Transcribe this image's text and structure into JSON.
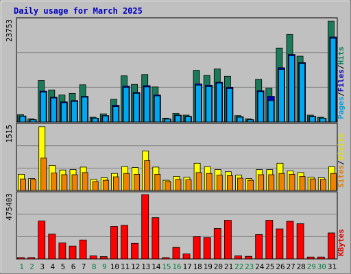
{
  "chart_data": {
    "type": "bar",
    "title": "Daily usage for March 2025",
    "categories": [
      "1",
      "2",
      "3",
      "4",
      "5",
      "6",
      "7",
      "8",
      "9",
      "10",
      "11",
      "12",
      "13",
      "14",
      "15",
      "16",
      "17",
      "18",
      "19",
      "20",
      "21",
      "22",
      "23",
      "24",
      "25",
      "26",
      "27",
      "28",
      "29",
      "30",
      "31"
    ],
    "weekend_days": [
      "1",
      "2",
      "8",
      "9",
      "15",
      "16",
      "22",
      "23",
      "29",
      "30"
    ],
    "panels": [
      {
        "id": "top",
        "max_label": "23753",
        "ymax": 23753,
        "legend": [
          {
            "text": "Pages",
            "color": "#00a0e0"
          },
          {
            "text": "Files",
            "color": "#0000c0"
          },
          {
            "text": "Hits",
            "color": "#008060"
          }
        ],
        "series": [
          {
            "name": "Hits",
            "color": "#1a7a5a",
            "values": [
              1700,
              700,
              9700,
              7500,
              6300,
              6700,
              8700,
              1100,
              1900,
              5300,
              10800,
              8800,
              11100,
              8200,
              900,
              2000,
              1600,
              12100,
              10900,
              12400,
              10700,
              1500,
              700,
              10000,
              7900,
              17300,
              20500,
              15400,
              1600,
              1100,
              23600
            ]
          },
          {
            "name": "Files",
            "color": "#0000c0",
            "values": [
              1400,
              550,
              7200,
              5800,
              4700,
              5000,
              6000,
              900,
              1500,
              3900,
              8400,
              6900,
              8500,
              6300,
              700,
              1600,
              1300,
              8900,
              8600,
              9300,
              8100,
              1200,
              550,
              7300,
              6000,
              12700,
              15800,
              13900,
              1300,
              900,
              19900
            ]
          },
          {
            "name": "Pages",
            "color": "#00a8f0",
            "values": [
              1300,
              500,
              7000,
              5600,
              4500,
              4800,
              5800,
              850,
              1400,
              3600,
              8100,
              6700,
              8200,
              6100,
              650,
              1500,
              1200,
              8600,
              8300,
              9100,
              7800,
              1100,
              500,
              7100,
              5000,
              12300,
              15500,
              13700,
              1200,
              850,
              19600
            ]
          }
        ]
      },
      {
        "id": "middle",
        "max_label": "1515",
        "ymax": 1515,
        "legend": [
          {
            "text": "Sites",
            "color": "#e08000"
          },
          {
            "text": "Visits",
            "color": "#e0e000"
          }
        ],
        "series": [
          {
            "name": "Visits",
            "color": "#ffff00",
            "values": [
              380,
              280,
              1500,
              590,
              480,
              490,
              550,
              260,
              300,
              400,
              560,
              540,
              930,
              550,
              240,
              330,
              310,
              640,
              560,
              490,
              440,
              360,
              280,
              490,
              490,
              640,
              460,
              420,
              310,
              300,
              560
            ]
          },
          {
            "name": "Sites",
            "color": "#f08000",
            "values": [
              270,
              260,
              760,
              410,
              370,
              370,
              420,
              210,
              240,
              320,
              400,
              380,
              700,
              380,
              210,
              260,
              250,
              420,
              400,
              360,
              350,
              290,
              240,
              370,
              370,
              400,
              380,
              330,
              270,
              260,
              400
            ]
          }
        ]
      },
      {
        "id": "bottom",
        "max_label": "475403",
        "ymax": 475403,
        "legend": [
          {
            "text": "KBytes",
            "color": "#e00000"
          }
        ],
        "series": [
          {
            "name": "KBytes",
            "color": "#ff0000",
            "values": [
              10000,
              10000,
              280000,
              183000,
              118000,
              95000,
              140000,
              23000,
              17000,
              240000,
              248000,
              115000,
              475000,
              305000,
              10000,
              85000,
              37000,
              165000,
              158000,
              225000,
              285000,
              23000,
              19000,
              180000,
              285000,
              222000,
              278000,
              260000,
              14000,
              14000,
              192000
            ]
          }
        ]
      }
    ]
  }
}
